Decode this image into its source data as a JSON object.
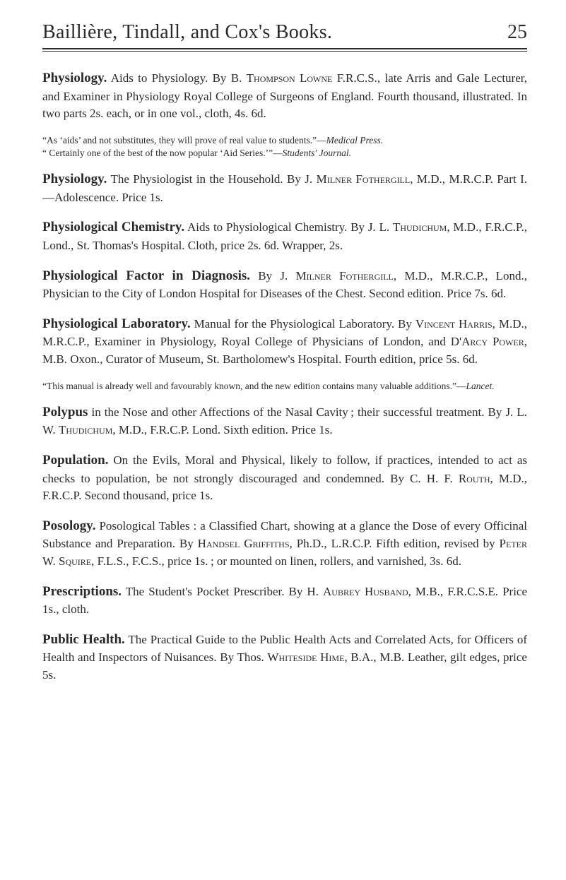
{
  "header": {
    "title": "Baillière, Tindall, and Cox's Books.",
    "page_number": "25"
  },
  "entries": {
    "physiology": {
      "head": "Physiology.",
      "body_a": " Aids to Physiology. By B. ",
      "name_a": "Thompson Lowne",
      "body_b": " F.R.C.S., late Arris and Gale Lecturer, and Examiner in Physiology Royal College of Surgeons of England. Fourth thousand, illustrated. In two parts 2s. each, or in one vol., cloth, 4s. 6d.",
      "fine_a": "“As ‘aids’ and not substitutes, they will prove of real value to students.”—",
      "fine_a_it": "Medical Press.",
      "fine_b": "“ Certainly one of the best of the now popular ‘Aid Series.’”—",
      "fine_b_it": "Students' Journal."
    },
    "physiology2": {
      "head": "Physiology.",
      "body_a": " The Physiologist in the Household. By J. ",
      "name_a": "Milner Fothergill",
      "body_b": ", M.D., M.R.C.P. Part I.—Adolescence. Price 1s."
    },
    "physio_chem": {
      "head": "Physiological Chemistry.",
      "body_a": " Aids to Physiological Chemistry. By J. L. ",
      "name_a": "Thudichum",
      "body_b": ", M.D., F.R.C.P., Lond., St. Thomas's Hospital. Cloth, price 2s. 6d. Wrapper, 2s."
    },
    "physio_factor": {
      "head": "Physiological Factor in Diagnosis.",
      "body_a": " By J. ",
      "name_a": "Milner Fothergill",
      "body_b": ", M.D., M.R.C.P., Lond., Physician to the City of London Hospital for Diseases of the Chest. Second edition. Price 7s. 6d."
    },
    "physio_lab": {
      "head": "Physiological Laboratory.",
      "body_a": " Manual for the Physiological Laboratory. By ",
      "name_a": "Vincent Harris",
      "body_b": ", M.D., M.R.C.P., Examiner in Physiology, Royal College of Physicians of London, and ",
      "name_b": "D'Arcy Power",
      "body_c": ", M.B. Oxon., Curator of Museum, St. Bartholomew's Hospital. Fourth edition, price 5s. 6d.",
      "fine_a": "“This manual is already well and favourably known, and the new edition contains many valuable additions.”—",
      "fine_a_it": "Lancet."
    },
    "polypus": {
      "head": "Polypus",
      "body_a": " in the Nose and other Affections of the Nasal Cavity ; their successful treatment. By J. L. W. ",
      "name_a": "Thudichum",
      "body_b": ", M.D., F.R.C.P. Lond. Sixth edition. Price 1s."
    },
    "population": {
      "head": "Population.",
      "body_a": " On the Evils, Moral and Physical, likely to follow, if practices, intended to act as checks to population, be not strongly discouraged and condemned. By C. H. F. ",
      "name_a": "Routh",
      "body_b": ", M.D., F.R.C.P. Second thousand, price 1s."
    },
    "posology": {
      "head": "Posology.",
      "body_a": " Posological Tables : a Classified Chart, showing at a glance the Dose of every Officinal Substance and Preparation. By ",
      "name_a": "Handsel Griffiths",
      "body_b": ", Ph.D., L.R.C.P. Fifth edition, revised by ",
      "name_b": "Peter",
      "body_c": " W. ",
      "name_c": "Squire",
      "body_d": ", F.L.S., F.C.S., price 1s. ; or mounted on linen, rollers, and varnished, 3s. 6d."
    },
    "prescriptions": {
      "head": "Prescriptions.",
      "body_a": " The Student's Pocket Prescriber. By H. ",
      "name_a": "Aubrey Husband",
      "body_b": ", M.B., F.R.C.S.E. Price 1s., cloth."
    },
    "public_health": {
      "head": "Public Health.",
      "body_a": " The Practical Guide to the Public Health Acts and Correlated Acts, for Officers of Health and Inspectors of Nuisances. By Thos. ",
      "name_a": "Whiteside Hime",
      "body_b": ", B.A., M.B. Leather, gilt edges, price 5s."
    }
  },
  "colors": {
    "text": "#2a2a2a",
    "background": "#ffffff",
    "rule": "#2a2a2a"
  },
  "typography": {
    "body_pt": 17,
    "head_pt": 19,
    "fine_pt": 13.5,
    "header_pt": 28,
    "family": "Georgia / Times-like serif"
  }
}
